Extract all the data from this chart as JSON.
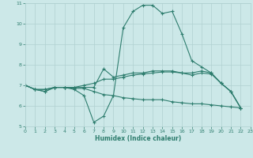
{
  "xlabel": "Humidex (Indice chaleur)",
  "xlim": [
    0,
    23
  ],
  "ylim": [
    5,
    11
  ],
  "xticks": [
    0,
    1,
    2,
    3,
    4,
    5,
    6,
    7,
    8,
    9,
    10,
    11,
    12,
    13,
    14,
    15,
    16,
    17,
    18,
    19,
    20,
    21,
    22,
    23
  ],
  "yticks": [
    5,
    6,
    7,
    8,
    9,
    10,
    11
  ],
  "bg_color": "#cce8e8",
  "grid_color": "#b0d0d0",
  "line_color": "#2e7d6e",
  "lines": [
    [
      7.0,
      6.8,
      6.7,
      6.9,
      6.9,
      6.8,
      6.5,
      5.2,
      5.5,
      6.5,
      9.8,
      10.6,
      10.9,
      10.9,
      10.5,
      10.6,
      9.5,
      8.2,
      7.9,
      7.6,
      7.1,
      6.7,
      5.9
    ],
    [
      7.0,
      6.8,
      6.7,
      6.9,
      6.9,
      6.9,
      6.9,
      6.9,
      7.8,
      7.4,
      7.5,
      7.6,
      7.6,
      7.7,
      7.7,
      7.7,
      7.6,
      7.6,
      7.7,
      7.6,
      7.1,
      6.7,
      5.9
    ],
    [
      7.0,
      6.8,
      6.8,
      6.9,
      6.9,
      6.9,
      7.0,
      7.1,
      7.3,
      7.3,
      7.4,
      7.5,
      7.55,
      7.6,
      7.65,
      7.65,
      7.6,
      7.5,
      7.6,
      7.55,
      7.1,
      6.7,
      5.9
    ],
    [
      7.0,
      6.8,
      6.8,
      6.9,
      6.9,
      6.85,
      6.85,
      6.7,
      6.55,
      6.5,
      6.4,
      6.35,
      6.3,
      6.3,
      6.3,
      6.2,
      6.15,
      6.1,
      6.1,
      6.05,
      6.0,
      5.95,
      5.9
    ]
  ]
}
